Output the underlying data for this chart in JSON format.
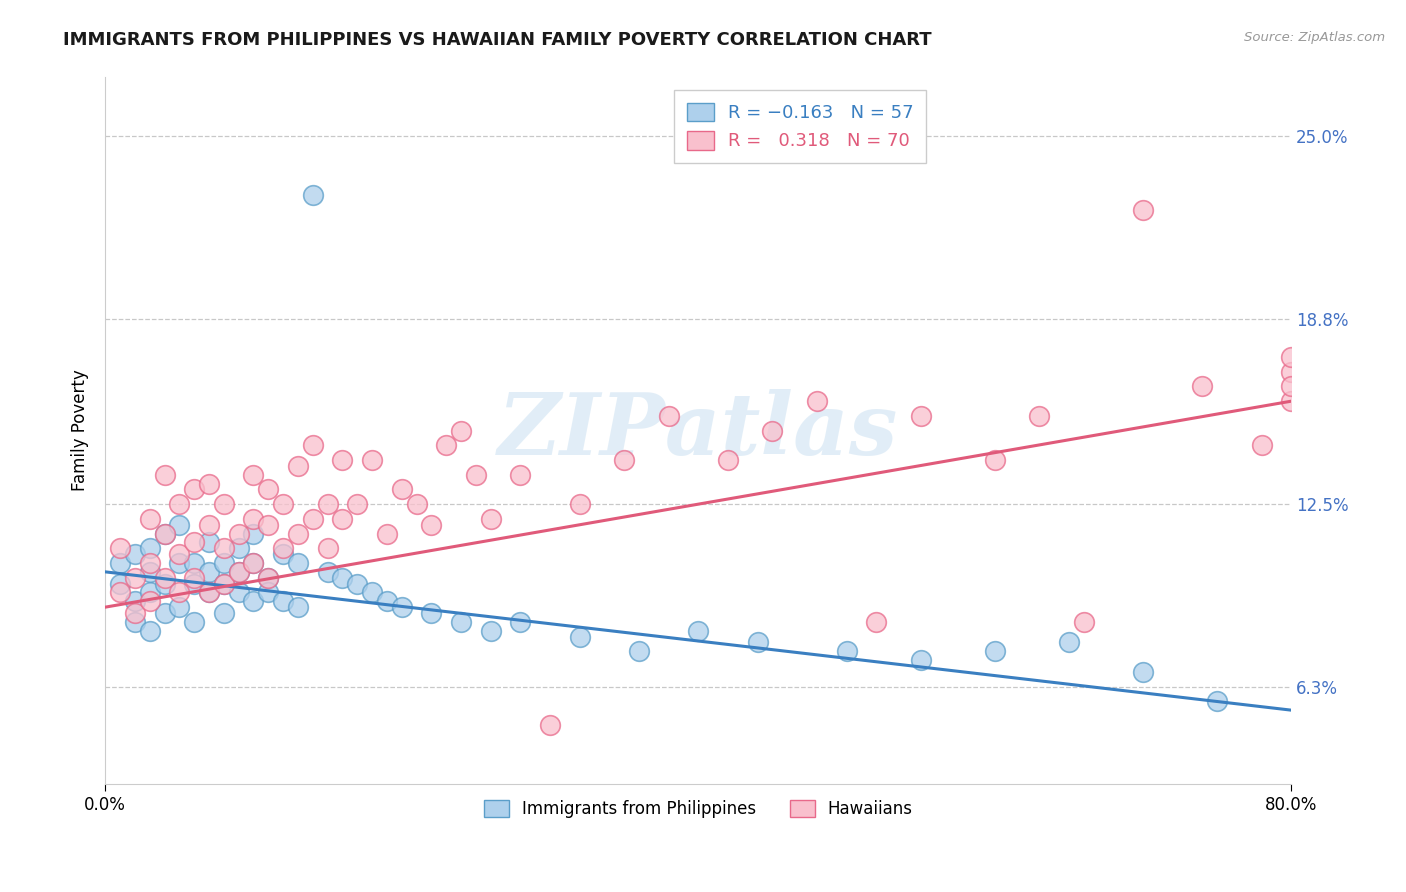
{
  "title": "IMMIGRANTS FROM PHILIPPINES VS HAWAIIAN FAMILY POVERTY CORRELATION CHART",
  "source": "Source: ZipAtlas.com",
  "xlabel": "",
  "ylabel": "Family Poverty",
  "watermark": "ZIPatlas",
  "legend_blue_label": "Immigrants from Philippines",
  "legend_pink_label": "Hawaiians",
  "r_blue": -0.163,
  "n_blue": 57,
  "r_pink": 0.318,
  "n_pink": 70,
  "xlim": [
    0.0,
    80.0
  ],
  "ylim": [
    3.0,
    27.0
  ],
  "yticks": [
    6.3,
    12.5,
    18.8,
    25.0
  ],
  "xticks": [
    0.0,
    80.0
  ],
  "xtick_labels": [
    "0.0%",
    "80.0%"
  ],
  "ytick_labels": [
    "6.3%",
    "12.5%",
    "18.8%",
    "25.0%"
  ],
  "blue_color": "#aed0ec",
  "pink_color": "#f9c0cd",
  "blue_edge_color": "#5b9ec9",
  "pink_edge_color": "#e8698a",
  "blue_line_color": "#3a7fc1",
  "pink_line_color": "#e05a7a",
  "background_color": "#ffffff",
  "grid_color": "#c8c8c8",
  "blue_scatter_x": [
    1,
    1,
    2,
    2,
    2,
    3,
    3,
    3,
    3,
    4,
    4,
    4,
    5,
    5,
    5,
    6,
    6,
    6,
    7,
    7,
    7,
    8,
    8,
    8,
    9,
    9,
    9,
    10,
    10,
    10,
    11,
    11,
    12,
    12,
    13,
    13,
    14,
    15,
    16,
    17,
    18,
    19,
    20,
    22,
    24,
    26,
    28,
    32,
    36,
    40,
    44,
    50,
    55,
    60,
    65,
    70,
    75
  ],
  "blue_scatter_y": [
    9.8,
    10.5,
    9.2,
    10.8,
    8.5,
    9.5,
    11.0,
    8.2,
    10.2,
    9.8,
    11.5,
    8.8,
    10.5,
    9.0,
    11.8,
    9.8,
    10.5,
    8.5,
    10.2,
    9.5,
    11.2,
    9.8,
    10.5,
    8.8,
    10.2,
    11.0,
    9.5,
    10.5,
    9.2,
    11.5,
    10.0,
    9.5,
    10.8,
    9.2,
    10.5,
    9.0,
    23.0,
    10.2,
    10.0,
    9.8,
    9.5,
    9.2,
    9.0,
    8.8,
    8.5,
    8.2,
    8.5,
    8.0,
    7.5,
    8.2,
    7.8,
    7.5,
    7.2,
    7.5,
    7.8,
    6.8,
    5.8
  ],
  "pink_scatter_x": [
    1,
    1,
    2,
    2,
    3,
    3,
    3,
    4,
    4,
    4,
    5,
    5,
    5,
    6,
    6,
    6,
    7,
    7,
    7,
    8,
    8,
    8,
    9,
    9,
    10,
    10,
    10,
    11,
    11,
    11,
    12,
    12,
    13,
    13,
    14,
    14,
    15,
    15,
    16,
    16,
    17,
    18,
    19,
    20,
    21,
    22,
    23,
    24,
    25,
    26,
    28,
    30,
    32,
    35,
    38,
    42,
    45,
    48,
    52,
    55,
    60,
    63,
    66,
    70,
    74,
    78,
    80,
    80,
    80,
    80
  ],
  "pink_scatter_y": [
    9.5,
    11.0,
    10.0,
    8.8,
    12.0,
    10.5,
    9.2,
    11.5,
    13.5,
    10.0,
    10.8,
    12.5,
    9.5,
    11.2,
    13.0,
    10.0,
    11.8,
    9.5,
    13.2,
    11.0,
    9.8,
    12.5,
    11.5,
    10.2,
    12.0,
    10.5,
    13.5,
    11.8,
    10.0,
    13.0,
    12.5,
    11.0,
    13.8,
    11.5,
    12.0,
    14.5,
    12.5,
    11.0,
    14.0,
    12.0,
    12.5,
    14.0,
    11.5,
    13.0,
    12.5,
    11.8,
    14.5,
    15.0,
    13.5,
    12.0,
    13.5,
    5.0,
    12.5,
    14.0,
    15.5,
    14.0,
    15.0,
    16.0,
    8.5,
    15.5,
    14.0,
    15.5,
    8.5,
    22.5,
    16.5,
    14.5,
    16.0,
    17.0,
    16.5,
    17.5
  ],
  "blue_line_x": [
    0,
    80
  ],
  "blue_line_y": [
    10.2,
    5.5
  ],
  "pink_line_x": [
    0,
    80
  ],
  "pink_line_y": [
    9.0,
    16.0
  ]
}
